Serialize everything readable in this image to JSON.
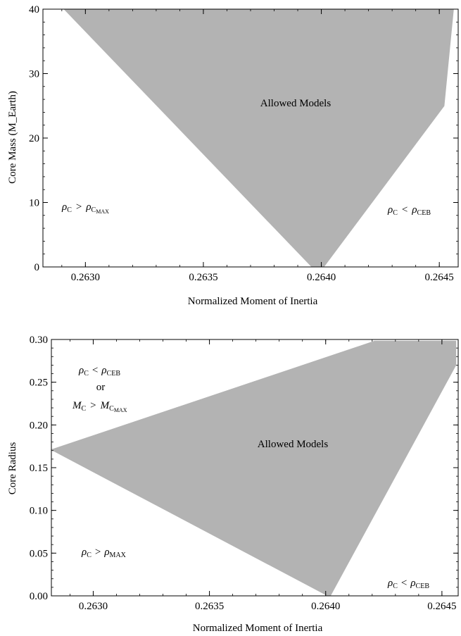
{
  "chart_data": [
    {
      "type": "area",
      "xlabel": "Normalized Moment of Inertia",
      "ylabel": "Core Mass (M_Earth)",
      "xlim": [
        0.26282,
        0.26458
      ],
      "ylim": [
        0,
        40
      ],
      "x_ticks": [
        "0.2630",
        "0.2635",
        "0.2640",
        "0.2645"
      ],
      "x_tick_values": [
        0.263,
        0.2635,
        0.264,
        0.2645
      ],
      "y_ticks": [
        "0",
        "10",
        "20",
        "30",
        "40"
      ],
      "y_tick_values": [
        0,
        10,
        20,
        30,
        40
      ],
      "fill_color": "#b3b3b3",
      "region": {
        "name": "Allowed Models",
        "polygon": [
          [
            0.26291,
            40
          ],
          [
            0.26456,
            40
          ],
          [
            0.26452,
            25
          ],
          [
            0.26401,
            0
          ],
          [
            0.26396,
            0
          ]
        ]
      },
      "annotations": {
        "allowed": "Allowed Models",
        "left_lhs": "ρ",
        "left_lhs_sub": "C",
        "left_op": ">",
        "left_rhs": "ρ",
        "left_rhs_sub": "C",
        "left_rhs_subsub": "MAX",
        "right_lhs": "ρ",
        "right_lhs_sub": "C",
        "right_op": "<",
        "right_rhs": "ρ",
        "right_rhs_sub": "CEB"
      }
    },
    {
      "type": "area",
      "xlabel": "Normalized Moment of Inertia",
      "ylabel": "Core Radius",
      "xlim": [
        0.26282,
        0.26457
      ],
      "ylim": [
        0,
        0.3
      ],
      "x_ticks": [
        "0.2630",
        "0.2635",
        "0.2640",
        "0.2645"
      ],
      "x_tick_values": [
        0.263,
        0.2635,
        0.264,
        0.2645
      ],
      "y_ticks": [
        "0.00",
        "0.05",
        "0.10",
        "0.15",
        "0.20",
        "0.25",
        "0.30"
      ],
      "y_tick_values": [
        0,
        0.05,
        0.1,
        0.15,
        0.2,
        0.25,
        0.3
      ],
      "fill_color": "#b3b3b3",
      "region": {
        "name": "Allowed Models",
        "polygon": [
          [
            0.26282,
            0.171
          ],
          [
            0.26421,
            0.298
          ],
          [
            0.26456,
            0.298
          ],
          [
            0.26456,
            0.27
          ],
          [
            0.26402,
            0.0
          ],
          [
            0.26401,
            0.0
          ]
        ]
      },
      "annotations": {
        "allowed": "Allowed Models",
        "tl_lhs": "ρ",
        "tl_lhs_sub": "C",
        "tl_op": "<",
        "tl_rhs": "ρ",
        "tl_rhs_sub": "CEB",
        "tl_or": "or",
        "tl2_lhs": "M",
        "tl2_lhs_sub": "C",
        "tl2_op": ">",
        "tl2_rhs": "M",
        "tl2_rhs_sub": "C",
        "tl2_rhs_subsub": "MAX",
        "bl_lhs": "ρ",
        "bl_lhs_sub": "C",
        "bl_op": ">",
        "bl_rhs": "ρ",
        "bl_rhs_sub": "MAX",
        "br_lhs": "ρ",
        "br_lhs_sub": "C",
        "br_op": "<",
        "br_rhs": "ρ",
        "br_rhs_sub": "CEB"
      }
    }
  ]
}
